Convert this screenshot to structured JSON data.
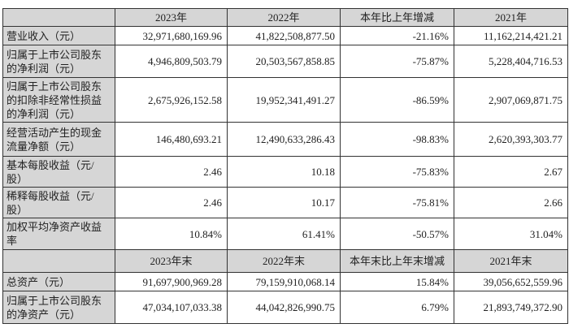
{
  "headers": [
    "",
    "2023年",
    "2022年",
    "本年比上年增减",
    "2021年"
  ],
  "rows": [
    {
      "label": "营业收入（元）",
      "values": [
        "32,971,680,169.96",
        "41,822,508,877.50",
        "-21.16%",
        "11,162,214,421.21"
      ]
    },
    {
      "label": "归属于上市公司股东的净利润（元）",
      "values": [
        "4,946,809,503.79",
        "20,503,567,858.85",
        "-75.87%",
        "5,228,404,716.53"
      ]
    },
    {
      "label": "归属于上市公司股东的扣除非经常性损益的净利润（元）",
      "values": [
        "2,675,926,152.58",
        "19,952,341,491.27",
        "-86.59%",
        "2,907,069,871.75"
      ]
    },
    {
      "label": "经营活动产生的现金流量净额（元）",
      "values": [
        "146,480,693.21",
        "12,490,633,286.43",
        "-98.83%",
        "2,620,393,303.77"
      ]
    },
    {
      "label": "基本每股收益（元/股）",
      "values": [
        "2.46",
        "10.18",
        "-75.83%",
        "2.67"
      ]
    },
    {
      "label": "稀释每股收益（元/股）",
      "values": [
        "2.46",
        "10.17",
        "-75.81%",
        "2.66"
      ]
    },
    {
      "label": "加权平均净资产收益率",
      "values": [
        "10.84%",
        "61.41%",
        "-50.57%",
        "31.04%"
      ]
    }
  ],
  "headers2": [
    "",
    "2023年末",
    "2022年末",
    "本年末比上年末增减",
    "2021年末"
  ],
  "rows2": [
    {
      "label": "总资产（元）",
      "values": [
        "91,697,900,969.28",
        "79,159,910,068.14",
        "15.84%",
        "39,056,652,559.96"
      ]
    },
    {
      "label": "归属于上市公司股东的净资产（元）",
      "values": [
        "47,034,107,033.38",
        "44,042,826,990.75",
        "6.79%",
        "21,893,749,372.90"
      ]
    }
  ]
}
